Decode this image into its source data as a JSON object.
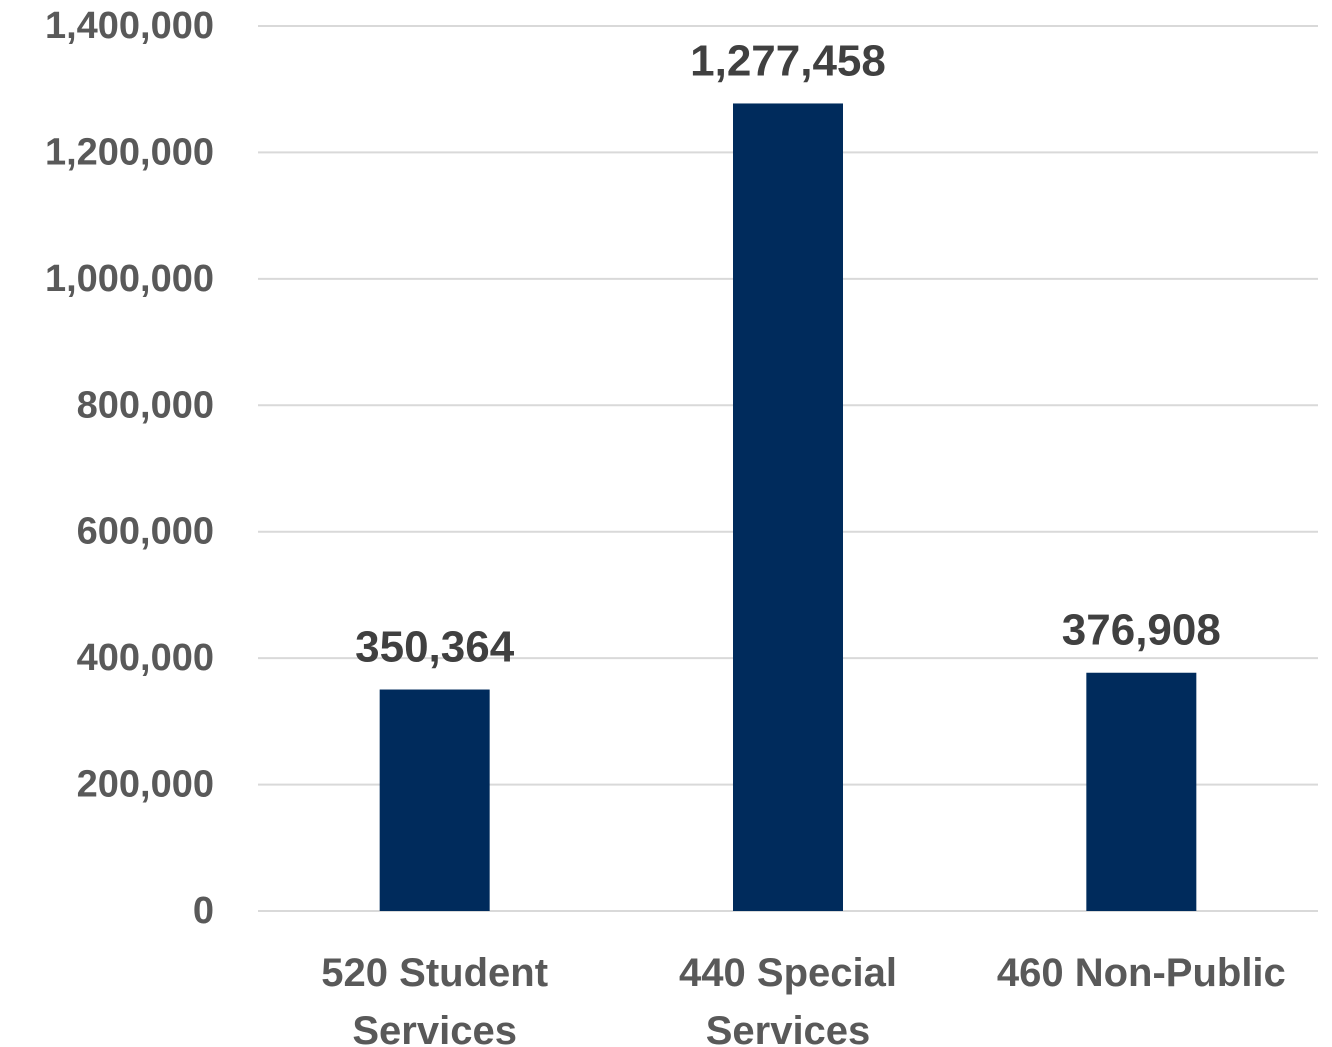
{
  "chart_data": {
    "type": "bar",
    "title": "",
    "xlabel": "",
    "ylabel": "",
    "categories": [
      [
        "520 Student",
        "Services"
      ],
      [
        "440 Special",
        "Services"
      ],
      [
        "460 Non-Public"
      ]
    ],
    "values": [
      350364,
      1277458,
      376908
    ],
    "value_labels": [
      "350,364",
      "1,277,458",
      "376,908"
    ],
    "ylim": [
      0,
      1400000
    ],
    "yticks": [
      0,
      200000,
      400000,
      600000,
      800000,
      1000000,
      1200000,
      1400000
    ],
    "ytick_labels": [
      "0",
      "200,000",
      "400,000",
      "600,000",
      "800,000",
      "1,000,000",
      "1,200,000",
      "1,400,000"
    ],
    "grid": true,
    "legend": "none",
    "colors": {
      "bar": "#002B5C",
      "grid": "#D9D9D9",
      "axis_text": "#595959",
      "data_label_text": "#404040"
    }
  }
}
